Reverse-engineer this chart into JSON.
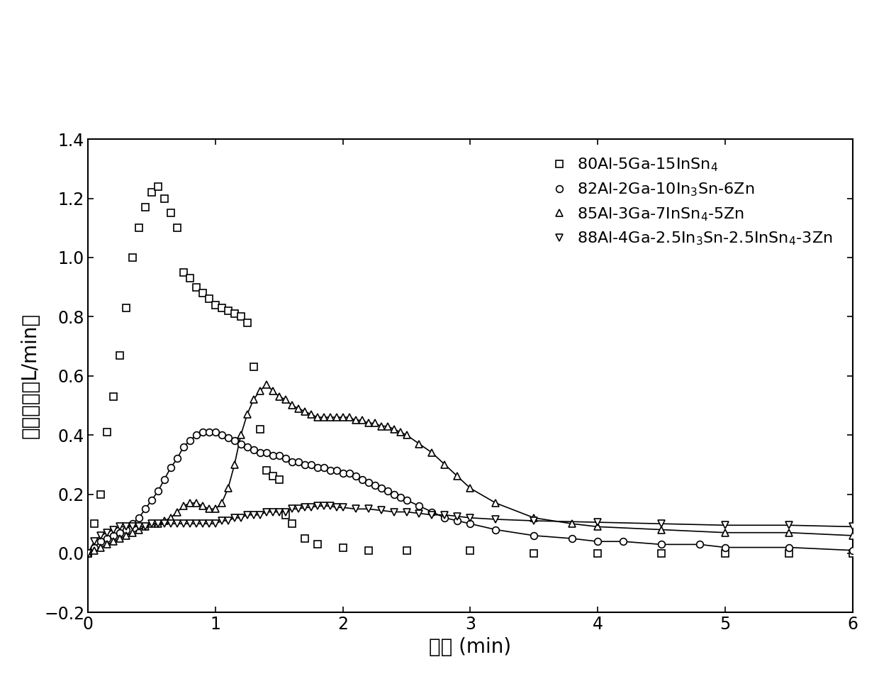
{
  "title": "",
  "xlabel": "时间 (min)",
  "ylabel": "产氢速率（L/min）",
  "xlim": [
    0,
    6
  ],
  "ylim": [
    -0.2,
    1.4
  ],
  "yticks": [
    -0.2,
    0.0,
    0.2,
    0.4,
    0.6,
    0.8,
    1.0,
    1.2,
    1.4
  ],
  "xticks": [
    0,
    1,
    2,
    3,
    4,
    5,
    6
  ],
  "legend_labels": [
    "80Al-5Ga-15InSn$_4$",
    "82Al-2Ga-10In$_3$Sn-6Zn",
    "85Al-3Ga-7InSn$_4$-5Zn",
    "88Al-4Ga-2.5In$_3$Sn-2.5InSn$_4$-3Zn"
  ],
  "series1_x": [
    0.0,
    0.05,
    0.1,
    0.15,
    0.2,
    0.25,
    0.3,
    0.35,
    0.4,
    0.45,
    0.5,
    0.55,
    0.6,
    0.65,
    0.7,
    0.75,
    0.8,
    0.85,
    0.9,
    0.95,
    1.0,
    1.05,
    1.1,
    1.15,
    1.2,
    1.25,
    1.3,
    1.35,
    1.4,
    1.45,
    1.5,
    1.55,
    1.6,
    1.7,
    1.8,
    2.0,
    2.2,
    2.5,
    3.0,
    3.5,
    4.0,
    4.5,
    5.0,
    5.5,
    6.0
  ],
  "series1_y": [
    0.0,
    0.1,
    0.2,
    0.41,
    0.53,
    0.67,
    0.83,
    1.0,
    1.1,
    1.17,
    1.22,
    1.24,
    1.2,
    1.15,
    1.1,
    0.95,
    0.93,
    0.9,
    0.88,
    0.86,
    0.84,
    0.83,
    0.82,
    0.81,
    0.8,
    0.78,
    0.63,
    0.42,
    0.28,
    0.26,
    0.25,
    0.13,
    0.1,
    0.05,
    0.03,
    0.02,
    0.01,
    0.01,
    0.01,
    0.0,
    0.0,
    0.0,
    0.0,
    0.0,
    0.0
  ],
  "series2_x": [
    0.0,
    0.05,
    0.1,
    0.15,
    0.2,
    0.25,
    0.3,
    0.35,
    0.4,
    0.45,
    0.5,
    0.55,
    0.6,
    0.65,
    0.7,
    0.75,
    0.8,
    0.85,
    0.9,
    0.95,
    1.0,
    1.05,
    1.1,
    1.15,
    1.2,
    1.25,
    1.3,
    1.35,
    1.4,
    1.45,
    1.5,
    1.55,
    1.6,
    1.65,
    1.7,
    1.75,
    1.8,
    1.85,
    1.9,
    1.95,
    2.0,
    2.05,
    2.1,
    2.15,
    2.2,
    2.25,
    2.3,
    2.35,
    2.4,
    2.45,
    2.5,
    2.6,
    2.7,
    2.8,
    2.9,
    3.0,
    3.2,
    3.5,
    3.8,
    4.0,
    4.2,
    4.5,
    4.8,
    5.0,
    5.5,
    6.0
  ],
  "series2_y": [
    0.0,
    0.02,
    0.04,
    0.05,
    0.06,
    0.07,
    0.08,
    0.1,
    0.12,
    0.15,
    0.18,
    0.21,
    0.25,
    0.29,
    0.32,
    0.36,
    0.38,
    0.4,
    0.41,
    0.41,
    0.41,
    0.4,
    0.39,
    0.38,
    0.37,
    0.36,
    0.35,
    0.34,
    0.34,
    0.33,
    0.33,
    0.32,
    0.31,
    0.31,
    0.3,
    0.3,
    0.29,
    0.29,
    0.28,
    0.28,
    0.27,
    0.27,
    0.26,
    0.25,
    0.24,
    0.23,
    0.22,
    0.21,
    0.2,
    0.19,
    0.18,
    0.16,
    0.14,
    0.12,
    0.11,
    0.1,
    0.08,
    0.06,
    0.05,
    0.04,
    0.04,
    0.03,
    0.03,
    0.02,
    0.02,
    0.01
  ],
  "series3_x": [
    0.0,
    0.05,
    0.1,
    0.15,
    0.2,
    0.25,
    0.3,
    0.35,
    0.4,
    0.45,
    0.5,
    0.55,
    0.6,
    0.65,
    0.7,
    0.75,
    0.8,
    0.85,
    0.9,
    0.95,
    1.0,
    1.05,
    1.1,
    1.15,
    1.2,
    1.25,
    1.3,
    1.35,
    1.4,
    1.45,
    1.5,
    1.55,
    1.6,
    1.65,
    1.7,
    1.75,
    1.8,
    1.85,
    1.9,
    1.95,
    2.0,
    2.05,
    2.1,
    2.15,
    2.2,
    2.25,
    2.3,
    2.35,
    2.4,
    2.45,
    2.5,
    2.6,
    2.7,
    2.8,
    2.9,
    3.0,
    3.2,
    3.5,
    3.8,
    4.0,
    4.5,
    5.0,
    5.5,
    6.0
  ],
  "series3_y": [
    0.0,
    0.01,
    0.02,
    0.03,
    0.04,
    0.05,
    0.06,
    0.07,
    0.08,
    0.09,
    0.1,
    0.1,
    0.11,
    0.12,
    0.14,
    0.16,
    0.17,
    0.17,
    0.16,
    0.15,
    0.15,
    0.17,
    0.22,
    0.3,
    0.4,
    0.47,
    0.52,
    0.55,
    0.57,
    0.55,
    0.53,
    0.52,
    0.5,
    0.49,
    0.48,
    0.47,
    0.46,
    0.46,
    0.46,
    0.46,
    0.46,
    0.46,
    0.45,
    0.45,
    0.44,
    0.44,
    0.43,
    0.43,
    0.42,
    0.41,
    0.4,
    0.37,
    0.34,
    0.3,
    0.26,
    0.22,
    0.17,
    0.12,
    0.1,
    0.09,
    0.08,
    0.07,
    0.07,
    0.06
  ],
  "series4_x": [
    0.0,
    0.05,
    0.1,
    0.15,
    0.2,
    0.25,
    0.3,
    0.35,
    0.4,
    0.45,
    0.5,
    0.55,
    0.6,
    0.65,
    0.7,
    0.75,
    0.8,
    0.85,
    0.9,
    0.95,
    1.0,
    1.05,
    1.1,
    1.15,
    1.2,
    1.25,
    1.3,
    1.35,
    1.4,
    1.45,
    1.5,
    1.55,
    1.6,
    1.65,
    1.7,
    1.75,
    1.8,
    1.85,
    1.9,
    1.95,
    2.0,
    2.1,
    2.2,
    2.3,
    2.4,
    2.5,
    2.6,
    2.7,
    2.8,
    2.9,
    3.0,
    3.2,
    3.5,
    4.0,
    4.5,
    5.0,
    5.5,
    6.0
  ],
  "series4_y": [
    0.0,
    0.04,
    0.06,
    0.07,
    0.08,
    0.09,
    0.09,
    0.09,
    0.09,
    0.09,
    0.1,
    0.1,
    0.1,
    0.1,
    0.1,
    0.1,
    0.1,
    0.1,
    0.1,
    0.1,
    0.1,
    0.11,
    0.11,
    0.12,
    0.12,
    0.13,
    0.13,
    0.13,
    0.14,
    0.14,
    0.14,
    0.14,
    0.15,
    0.15,
    0.155,
    0.155,
    0.16,
    0.16,
    0.16,
    0.155,
    0.155,
    0.15,
    0.15,
    0.145,
    0.14,
    0.14,
    0.135,
    0.13,
    0.13,
    0.125,
    0.12,
    0.115,
    0.11,
    0.105,
    0.1,
    0.095,
    0.095,
    0.09
  ],
  "bg_color": "#ffffff",
  "fontsize_label": 20,
  "fontsize_tick": 17,
  "fontsize_legend": 16
}
